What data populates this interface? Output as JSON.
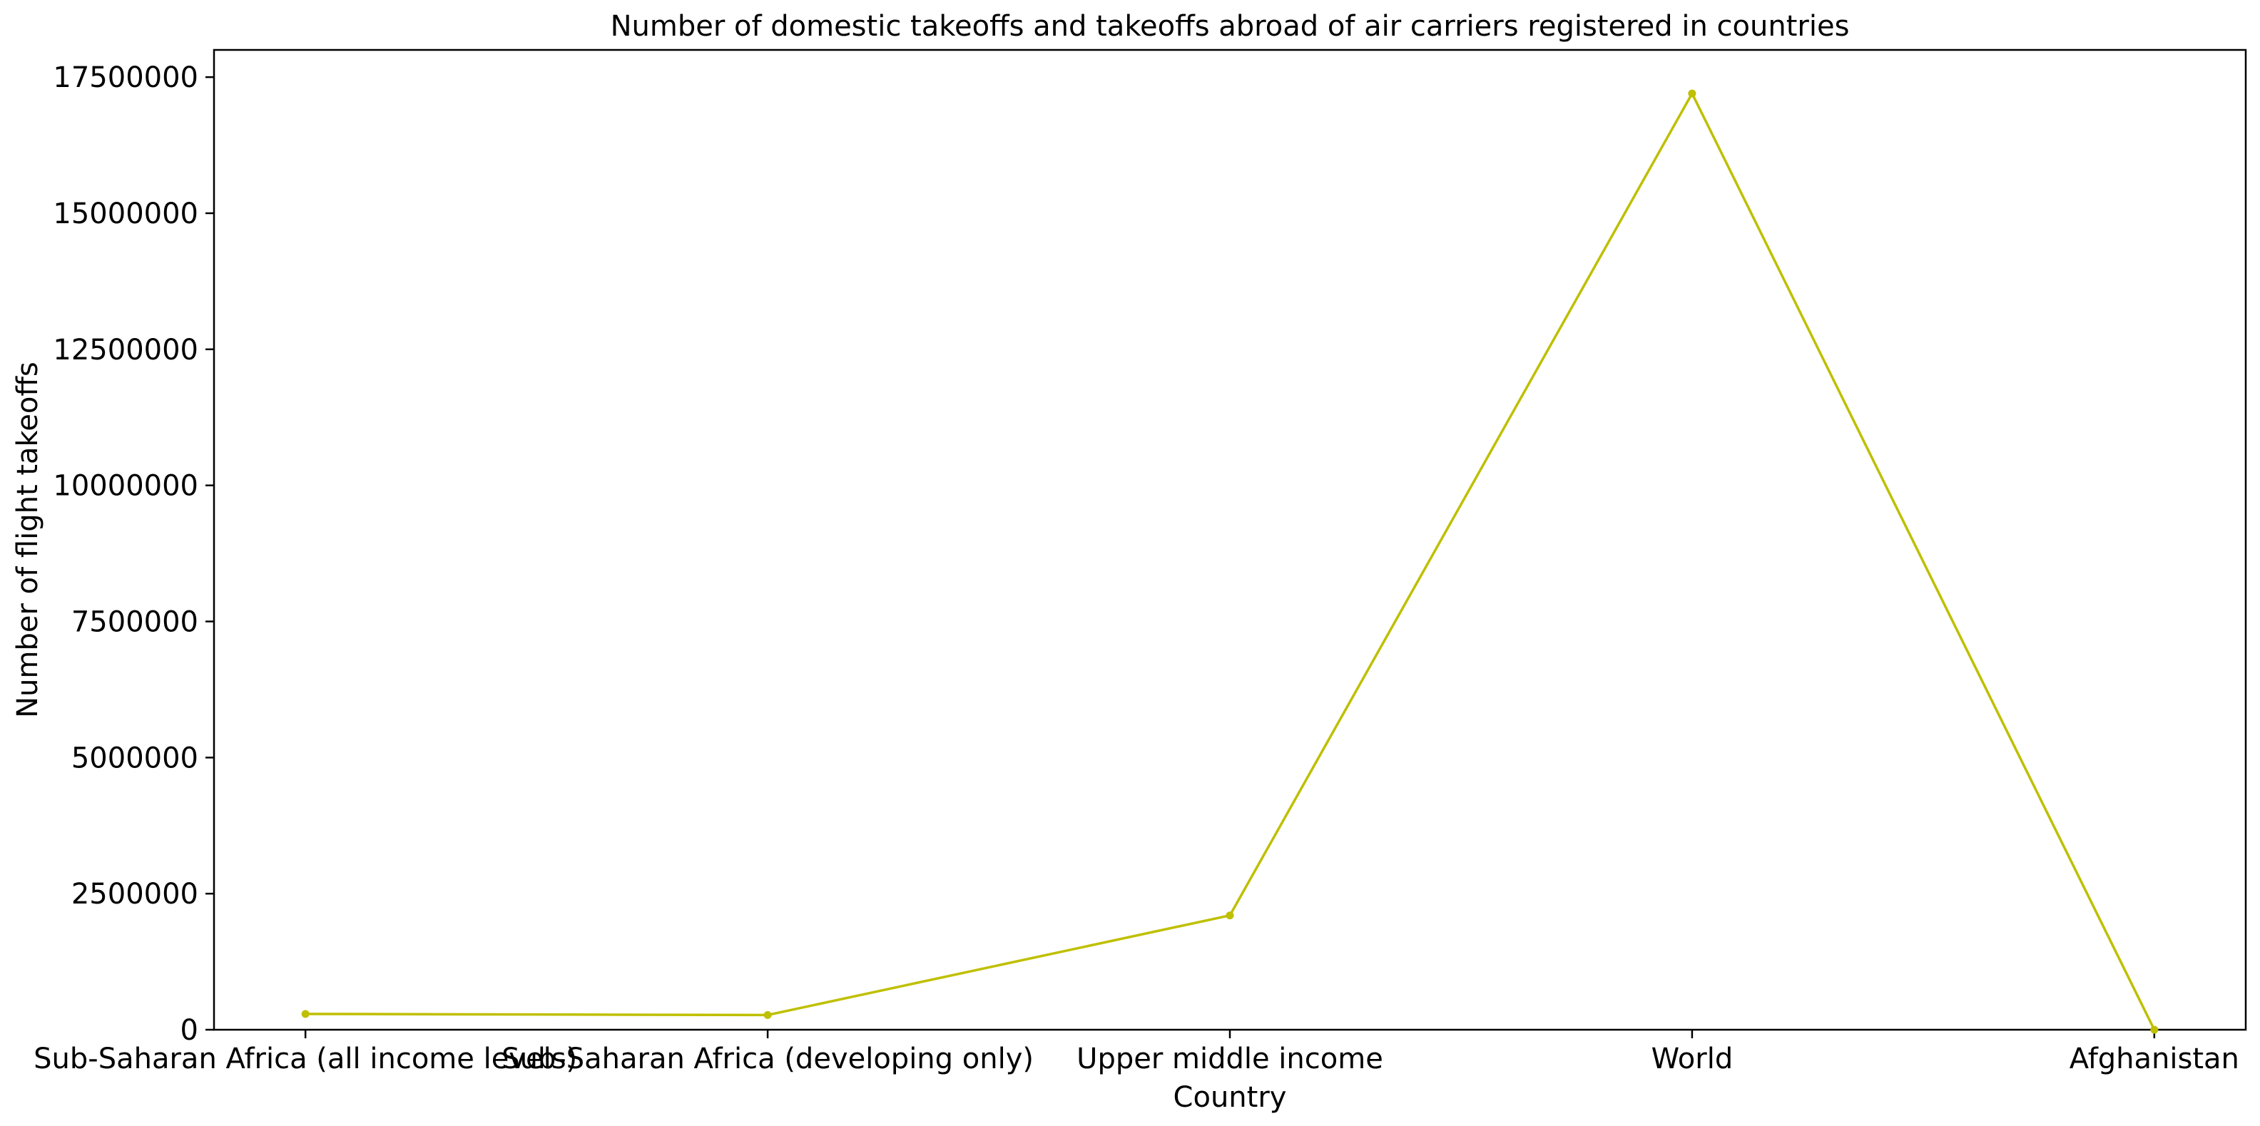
{
  "chart_data": {
    "type": "line",
    "title": "Number of domestic takeoffs and takeoffs abroad of air carriers registered in countries",
    "xlabel": "Country",
    "ylabel": "Number of flight takeoffs",
    "categories": [
      "Sub-Saharan Africa (all income levels)",
      "Sub-Saharan Africa (developing only)",
      "Upper middle income",
      "World",
      "Afghanistan"
    ],
    "series": [
      {
        "name": "Number of flight takeoffs",
        "color": "#bfbf00",
        "values": [
          290000,
          270000,
          2100000,
          17200000,
          0
        ]
      }
    ],
    "ylim": [
      0,
      18000000
    ],
    "yticks": [
      0,
      2500000,
      5000000,
      7500000,
      10000000,
      12500000,
      15000000,
      17500000
    ],
    "ytick_labels": [
      "0",
      "2500000",
      "5000000",
      "7500000",
      "10000000",
      "12500000",
      "15000000",
      "17500000"
    ],
    "grid": false,
    "legend": "none"
  }
}
